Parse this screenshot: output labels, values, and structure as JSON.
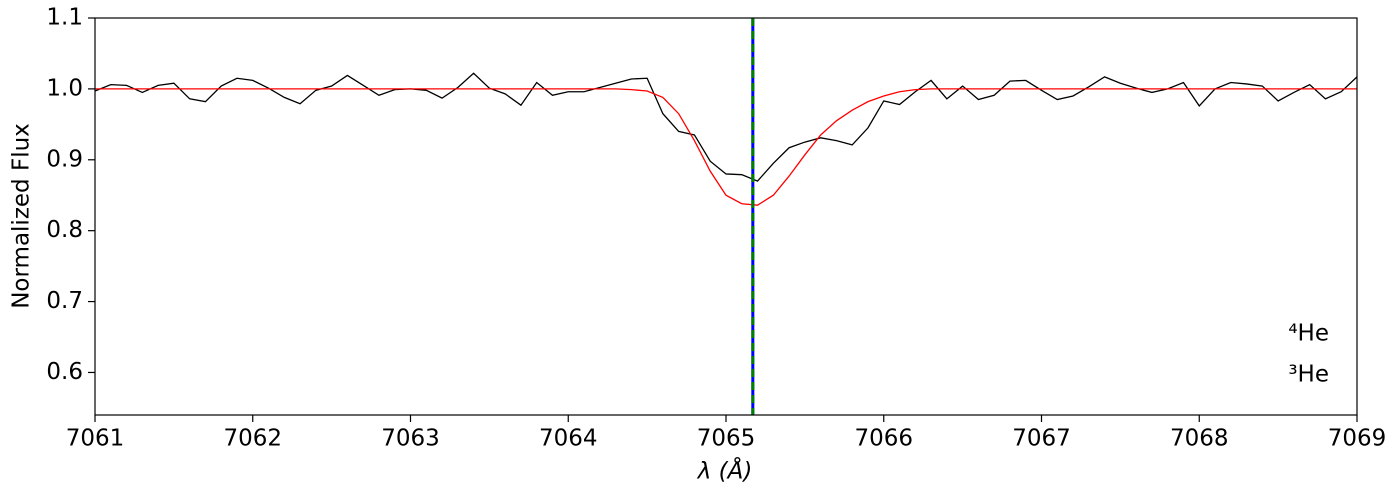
{
  "chart_data": {
    "type": "line",
    "xlabel": "λ (Å)",
    "ylabel": "Normalized Flux",
    "xlim": [
      7061,
      7069
    ],
    "ylim": [
      0.54,
      1.1
    ],
    "xticks": [
      7061,
      7062,
      7063,
      7064,
      7065,
      7066,
      7067,
      7068,
      7069
    ],
    "yticks": [
      0.6,
      0.7,
      0.8,
      0.9,
      {
        "value": 1,
        "label": "1.0"
      },
      1.1
    ],
    "x": [
      7061.0,
      7061.1,
      7061.2,
      7061.3,
      7061.4,
      7061.5,
      7061.6,
      7061.7,
      7061.8,
      7061.9,
      7062.0,
      7062.1,
      7062.2,
      7062.3,
      7062.4,
      7062.5,
      7062.6,
      7062.7,
      7062.8,
      7062.9,
      7063.0,
      7063.1,
      7063.2,
      7063.3,
      7063.4,
      7063.5,
      7063.6,
      7063.7,
      7063.8,
      7063.9,
      7064.0,
      7064.1,
      7064.2,
      7064.3,
      7064.4,
      7064.5,
      7064.6,
      7064.7,
      7064.8,
      7064.9,
      7065.0,
      7065.1,
      7065.2,
      7065.3,
      7065.4,
      7065.5,
      7065.6,
      7065.7,
      7065.8,
      7065.9,
      7066.0,
      7066.1,
      7066.2,
      7066.3,
      7066.4,
      7066.5,
      7066.6,
      7066.7,
      7066.8,
      7066.9,
      7067.0,
      7067.1,
      7067.2,
      7067.3,
      7067.4,
      7067.5,
      7067.6,
      7067.7,
      7067.8,
      7067.9,
      7068.0,
      7068.1,
      7068.2,
      7068.3,
      7068.4,
      7068.5,
      7068.6,
      7068.7,
      7068.8,
      7068.9,
      7069.0
    ],
    "series": [
      {
        "color": "black",
        "values": [
          0.997,
          1.006,
          1.005,
          0.995,
          1.005,
          1.008,
          0.986,
          0.982,
          1.004,
          1.015,
          1.012,
          1.001,
          0.988,
          0.979,
          0.998,
          1.004,
          1.019,
          1.005,
          0.991,
          0.999,
          1.0,
          0.998,
          0.987,
          1.002,
          1.022,
          1.001,
          0.993,
          0.977,
          1.009,
          0.991,
          0.996,
          0.996,
          1.002,
          1.008,
          1.014,
          1.015,
          0.965,
          0.94,
          0.935,
          0.898,
          0.88,
          0.879,
          0.87,
          0.895,
          0.917,
          0.925,
          0.931,
          0.927,
          0.921,
          0.945,
          0.983,
          0.978,
          0.996,
          1.012,
          0.986,
          1.004,
          0.985,
          0.991,
          1.011,
          1.012,
          0.998,
          0.985,
          0.99,
          1.003,
          1.017,
          1.008,
          1.001,
          0.995,
          1.0,
          1.009,
          0.976,
          1.0,
          1.009,
          1.007,
          1.004,
          0.983,
          0.995,
          1.006,
          0.986,
          0.996,
          1.017
        ]
      },
      {
        "color": "red",
        "values": [
          1,
          1,
          1,
          1,
          1,
          1,
          1,
          1,
          1,
          1,
          1,
          1,
          1,
          1,
          1,
          1,
          1,
          1,
          1,
          1,
          1,
          1,
          1,
          1,
          1,
          1,
          1,
          1,
          1,
          1,
          1,
          1,
          1,
          1,
          0.999,
          0.997,
          0.988,
          0.965,
          0.927,
          0.884,
          0.85,
          0.838,
          0.836,
          0.85,
          0.877,
          0.907,
          0.935,
          0.955,
          0.97,
          0.982,
          0.99,
          0.996,
          0.999,
          1,
          1,
          1,
          1,
          1,
          1,
          1,
          1,
          1,
          1,
          1,
          1,
          1,
          1,
          1,
          1,
          1,
          1,
          1,
          1,
          1,
          1,
          1,
          1,
          1,
          1,
          1,
          1
        ]
      }
    ],
    "vlines": [
      {
        "x": 7065.17,
        "color": "blue",
        "dashed": false
      },
      {
        "x": 7065.17,
        "color": "green",
        "dashed": true
      }
    ],
    "annotations": [
      {
        "text": "⁴He",
        "color": "blue"
      },
      {
        "text": "³He",
        "color": "green"
      }
    ]
  }
}
